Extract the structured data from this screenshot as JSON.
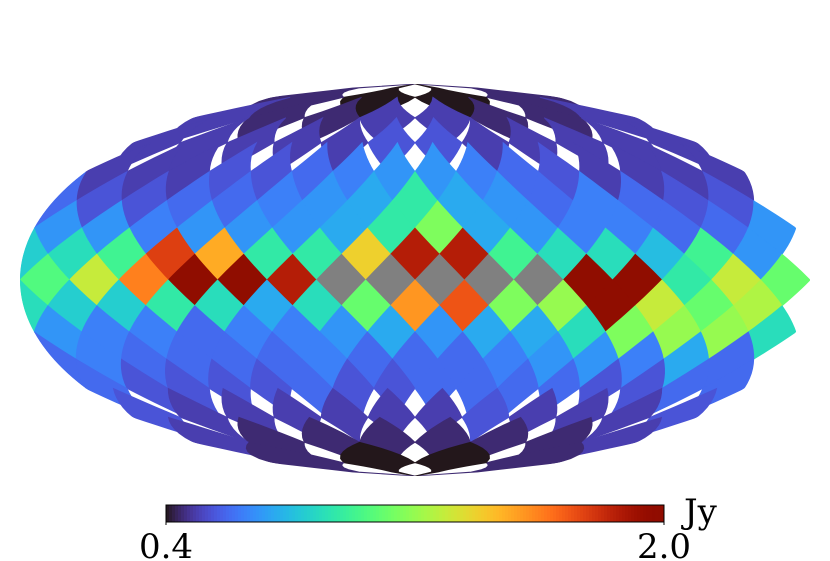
{
  "chart_data": {
    "type": "healpix",
    "projection": "mollweide",
    "colormap": "turbo",
    "bad_color": "#808080",
    "clim": [
      0.4,
      2.0
    ],
    "colorbar_ticks": [
      0.4,
      {
        "value": 2.0,
        "label": "2.0"
      }
    ],
    "unit": "Jy",
    "rings": [
      [
        0.4,
        0.45,
        0.45,
        0.4
      ],
      [
        0.5,
        0.45,
        0.45,
        0.5,
        0.5,
        0.45,
        0.45,
        0.5
      ],
      [
        0.55,
        0.5,
        0.5,
        0.5,
        0.5,
        0.5,
        0.5,
        0.5,
        0.5,
        0.5,
        0.5,
        0.55
      ],
      [
        0.7,
        0.65,
        0.6,
        0.55,
        0.55,
        0.5,
        0.5,
        0.5,
        0.5,
        0.5,
        0.5,
        0.5,
        0.55,
        0.6,
        0.65,
        0.7
      ],
      [
        0.75,
        0.7,
        0.65,
        0.6,
        0.6,
        0.55,
        0.55,
        0.6,
        0.55,
        0.55,
        0.6,
        0.65,
        0.6,
        0.7,
        0.75,
        0.95
      ],
      [
        0.95,
        0.75,
        0.7,
        0.7,
        0.7,
        0.65,
        0.7,
        0.7,
        0.7,
        0.6,
        0.6,
        0.65,
        0.65,
        0.7,
        0.75,
        1.15
      ],
      [
        1.4,
        0.95,
        0.95,
        1.5,
        1.75,
        1.0,
        0.9,
        0.85,
        0.7,
        1.0,
        0.8,
        0.9,
        0.9,
        1.0,
        1.85,
        1.85
      ],
      [
        null,
        null,
        1.85,
        2.0,
        2.0,
        1.6,
        1.3,
        1.05,
        1.1,
        1.3,
        0.95,
        2.0,
        2.0,
        null,
        null,
        null
      ],
      [
        1.1,
        0.9,
        0.75,
        0.9,
        0.95,
        0.85,
        0.85,
        0.9,
        1.25,
        1.1,
        1.3,
        2.0,
        1.2,
        1.15,
        1.7,
        1.55
      ],
      [
        0.75,
        0.7,
        0.65,
        0.65,
        0.6,
        0.65,
        0.65,
        0.7,
        0.9,
        1.2,
        1.2,
        1.15,
        0.9,
        0.75,
        0.75,
        0.7
      ],
      [
        0.6,
        0.65,
        0.6,
        0.6,
        0.6,
        0.6,
        0.65,
        0.6,
        0.6,
        0.75,
        0.65,
        0.7,
        0.7,
        0.65,
        0.6,
        0.6
      ],
      [
        0.55,
        0.55,
        0.6,
        0.55,
        0.55,
        0.55,
        0.55,
        0.6,
        0.6,
        0.6,
        0.55,
        0.55,
        0.6,
        0.6,
        0.6,
        0.6
      ],
      [
        0.5,
        0.5,
        0.5,
        0.5,
        0.5,
        0.55,
        0.55,
        0.5,
        0.5,
        0.5,
        0.55,
        0.5
      ],
      [
        0.45,
        0.45,
        0.45,
        0.5,
        0.5,
        0.45,
        0.45,
        0.45
      ],
      [
        0.4,
        0.45,
        0.45,
        0.4
      ]
    ]
  }
}
